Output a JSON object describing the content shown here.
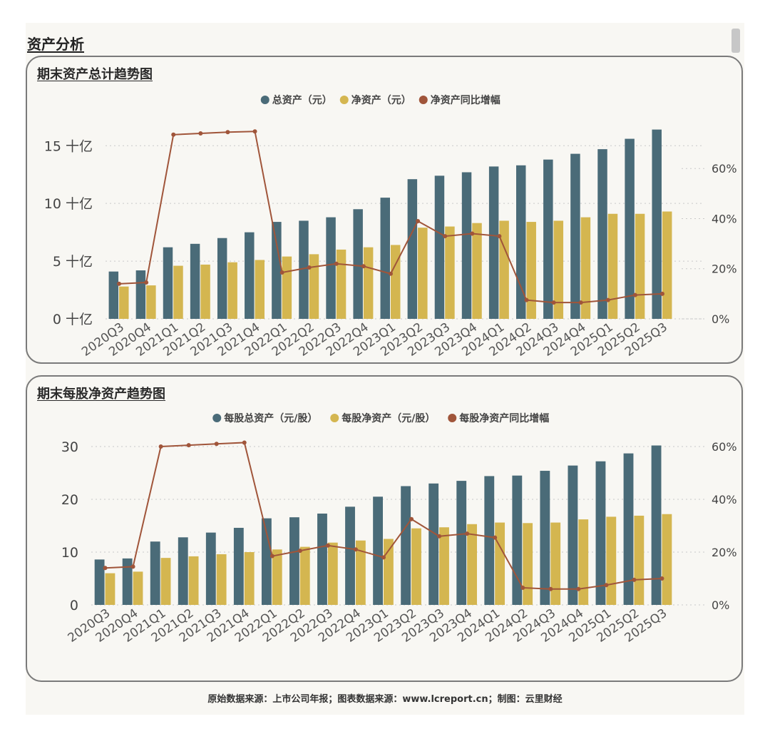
{
  "section_title": "资产分析",
  "footer": "原始数据来源：上市公司年报；图表数据来源：www.lcreport.cn；制图：云里财经",
  "colors": {
    "bar1": "#4a6b78",
    "bar2": "#d4b650",
    "line": "#a0553a"
  },
  "chart_data": [
    {
      "type": "bar",
      "title": "期末资产总计趋势图",
      "categories": [
        "2020Q3",
        "2020Q4",
        "2021Q1",
        "2021Q2",
        "2021Q3",
        "2021Q4",
        "2022Q1",
        "2022Q2",
        "2022Q3",
        "2022Q4",
        "2023Q1",
        "2023Q2",
        "2023Q3",
        "2023Q4",
        "2024Q1",
        "2024Q2",
        "2024Q3",
        "2024Q4",
        "2025Q1",
        "2025Q2",
        "2025Q3"
      ],
      "series": [
        {
          "name": "总资产（元）",
          "kind": "bar",
          "axis": "left",
          "values": [
            4.1,
            4.2,
            6.2,
            6.5,
            7.0,
            7.5,
            8.4,
            8.5,
            8.8,
            9.5,
            10.5,
            12.1,
            12.4,
            12.7,
            13.2,
            13.3,
            13.8,
            14.3,
            14.7,
            15.6,
            16.4
          ]
        },
        {
          "name": "净资产（元）",
          "kind": "bar",
          "axis": "left",
          "values": [
            2.8,
            2.9,
            4.6,
            4.7,
            4.9,
            5.1,
            5.4,
            5.6,
            6.0,
            6.2,
            6.4,
            7.9,
            8.0,
            8.3,
            8.5,
            8.4,
            8.5,
            8.8,
            9.1,
            9.1,
            9.3
          ]
        },
        {
          "name": "净资产同比增幅",
          "kind": "line",
          "axis": "right",
          "values": [
            14,
            14.5,
            73.5,
            74,
            74.5,
            74.8,
            18.5,
            20.5,
            22,
            21,
            18,
            39,
            33,
            34,
            33,
            7.5,
            6.5,
            6.5,
            7.5,
            9.5,
            10
          ]
        }
      ],
      "yleft": {
        "min": 0,
        "max": 16.5,
        "ticks": [
          0,
          5,
          10,
          15
        ],
        "tick_labels": [
          "0 十亿",
          "5 十亿",
          "10 十亿",
          "15 十亿"
        ]
      },
      "yright": {
        "min": 0,
        "max": 76,
        "ticks": [
          0,
          20,
          40,
          60
        ],
        "tick_labels": [
          "0%",
          "20%",
          "40%",
          "60%"
        ]
      },
      "grid": true,
      "legend": "top-center"
    },
    {
      "type": "bar",
      "title": "期末每股净资产趋势图",
      "categories": [
        "2020Q3",
        "2020Q4",
        "2021Q1",
        "2021Q2",
        "2021Q3",
        "2021Q4",
        "2022Q1",
        "2022Q2",
        "2022Q3",
        "2022Q4",
        "2023Q1",
        "2023Q2",
        "2023Q3",
        "2023Q4",
        "2024Q1",
        "2024Q2",
        "2024Q3",
        "2024Q4",
        "2025Q1",
        "2025Q2",
        "2025Q3"
      ],
      "series": [
        {
          "name": "每股总资产（元/股）",
          "kind": "bar",
          "axis": "left",
          "values": [
            8.6,
            8.8,
            12.0,
            12.8,
            13.7,
            14.6,
            16.4,
            16.6,
            17.3,
            18.6,
            20.5,
            22.5,
            23.0,
            23.5,
            24.4,
            24.5,
            25.4,
            26.4,
            27.2,
            28.7,
            30.2
          ]
        },
        {
          "name": "每股净资产（元/股）",
          "kind": "bar",
          "axis": "left",
          "values": [
            6.0,
            6.3,
            8.9,
            9.2,
            9.6,
            10.0,
            10.5,
            11.0,
            11.8,
            12.2,
            12.5,
            14.5,
            14.7,
            15.3,
            15.6,
            15.5,
            15.6,
            16.2,
            16.7,
            16.9,
            17.2
          ]
        },
        {
          "name": "每股净资产同比增幅",
          "kind": "line",
          "axis": "right",
          "values": [
            14,
            14.5,
            60,
            60.5,
            61,
            61.5,
            18.5,
            20.5,
            22.5,
            21,
            18,
            32.5,
            26,
            27,
            25.5,
            6.5,
            6,
            6,
            7.5,
            9.5,
            10
          ]
        }
      ],
      "yleft": {
        "min": 0,
        "max": 30,
        "ticks": [
          0,
          10,
          20,
          30
        ],
        "tick_labels": [
          "0",
          "10",
          "20",
          "30"
        ]
      },
      "yright": {
        "min": 0,
        "max": 60,
        "ticks": [
          0,
          20,
          40,
          60
        ],
        "tick_labels": [
          "0%",
          "20%",
          "40%",
          "60%"
        ]
      },
      "grid": true,
      "legend": "top-center"
    }
  ]
}
